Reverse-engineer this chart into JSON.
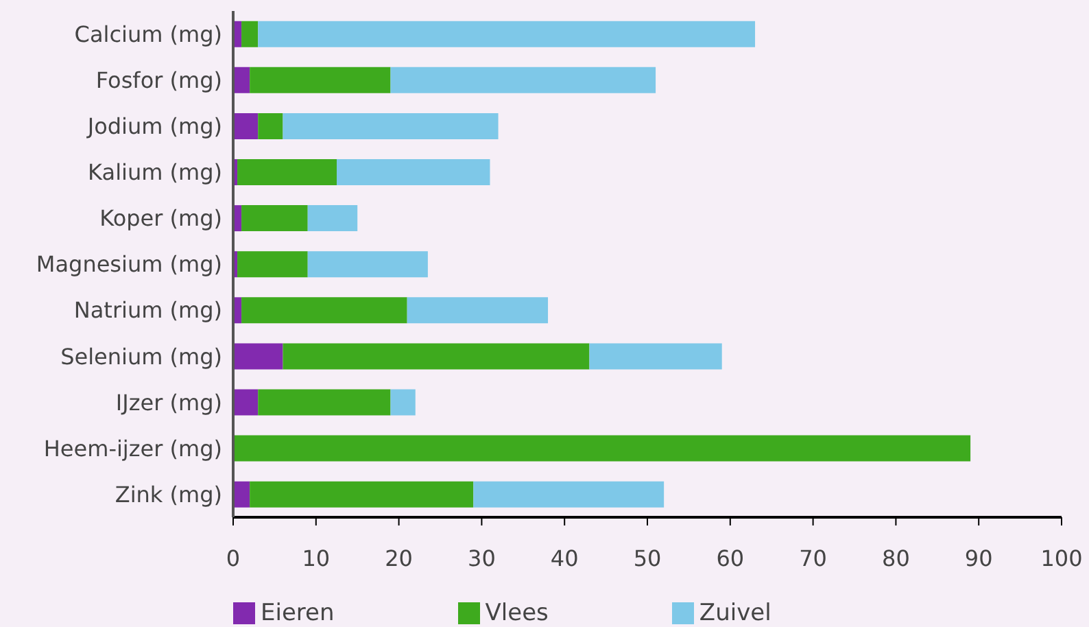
{
  "chart_data": {
    "type": "bar",
    "orientation": "horizontal",
    "stacked": true,
    "categories": [
      "Calcium (mg)",
      "Fosfor (mg)",
      "Jodium (mg)",
      "Kalium (mg)",
      "Koper (mg)",
      "Magnesium (mg)",
      "Natrium (mg)",
      "Selenium (mg)",
      "IJzer (mg)",
      "Heem-ijzer (mg)",
      "Zink (mg)"
    ],
    "series": [
      {
        "name": "Eieren",
        "color": "#822aaf",
        "values": [
          1,
          2,
          3,
          0.5,
          1,
          0.5,
          1,
          6,
          3,
          0,
          2
        ]
      },
      {
        "name": "Vlees",
        "color": "#3eaa1e",
        "values": [
          2,
          17,
          3,
          12,
          8,
          8.5,
          20,
          37,
          16,
          89,
          27
        ]
      },
      {
        "name": "Zuivel",
        "color": "#7ec8e8",
        "values": [
          60,
          32,
          26,
          18.5,
          6,
          14.5,
          17,
          16,
          3,
          0,
          23
        ]
      }
    ],
    "xlim": [
      0,
      100
    ],
    "xticks": [
      0,
      10,
      20,
      30,
      40,
      50,
      60,
      70,
      80,
      90,
      100
    ],
    "grid": false,
    "legend": "bottom left"
  }
}
